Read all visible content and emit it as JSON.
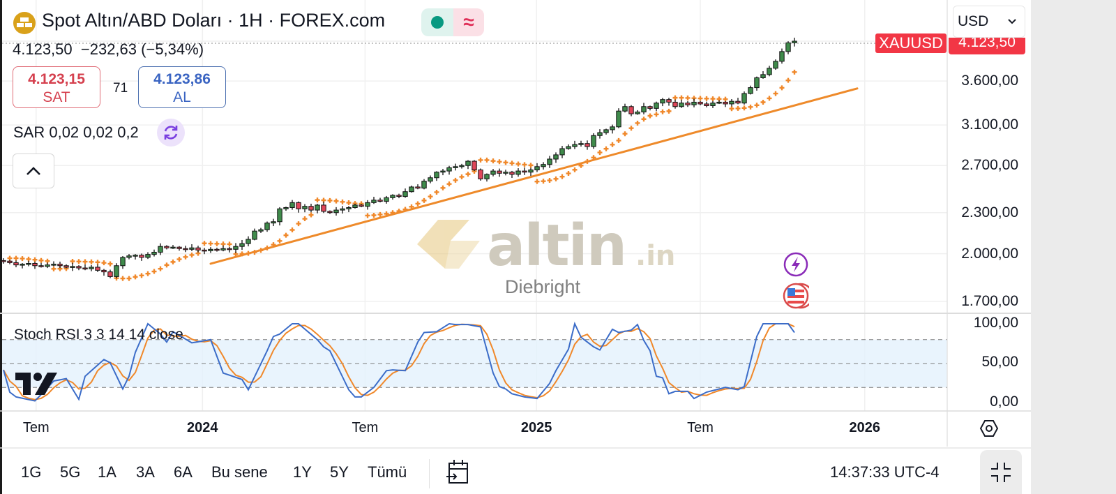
{
  "header": {
    "title": "Spot Altın/ABD Doları · 1H · FOREX.com",
    "symbol_icon": "gold-bars-icon",
    "status_icon": "market-open-dot-icon",
    "status_icon2": "delayed-wave-icon",
    "wave_glyph": "≈",
    "last_price": "4.123,50",
    "change": "−232,63",
    "change_pct": "(−5,34%)"
  },
  "trade": {
    "sell_price": "4.123,15",
    "sell_label": "SAT",
    "spread": "71",
    "buy_price": "4.123,86",
    "buy_label": "AL"
  },
  "indicator_legend": {
    "sar": "SAR 0,02 0,02 0,2",
    "stoch": "Stoch RSI 3 3 14 14 close"
  },
  "price_axis": {
    "currency": "USD",
    "symbol_label": "XAUUSD",
    "last_price_label": "4.123,50",
    "ticks": [
      "3.600,00",
      "3.100,00",
      "2.700,00",
      "2.300,00",
      "2.000,00",
      "1.700,00"
    ],
    "tick_values": [
      3600,
      3100,
      2700,
      2300,
      2000,
      1700
    ],
    "stoch_ticks": [
      "100,00",
      "50,00",
      "0,00"
    ]
  },
  "time_axis": {
    "ticks": [
      {
        "label": "Tem",
        "bar": 5.2,
        "bold": false
      },
      {
        "label": "2024",
        "bar": 31.7,
        "bold": true
      },
      {
        "label": "Tem",
        "bar": 57.6,
        "bold": false
      },
      {
        "label": "2025",
        "bar": 84.9,
        "bold": true
      },
      {
        "label": "Tem",
        "bar": 111.0,
        "bold": false
      },
      {
        "label": "2026",
        "bar": 137.2,
        "bold": true
      }
    ]
  },
  "toolbar": {
    "ranges": [
      "1G",
      "5G",
      "1A",
      "3A",
      "6A",
      "Bu sene",
      "1Y",
      "5Y",
      "Tümü"
    ],
    "time": "14:37:33 UTC-4"
  },
  "watermark": {
    "brand": "altin",
    "brand_suffix": ".in",
    "author": "Diebright"
  },
  "colors": {
    "up": "#3f8b4b",
    "down": "#e0465a",
    "sar": "#f0882a",
    "trendline": "#ee8a2a",
    "stoch_k": "#3b6cc8",
    "stoch_d": "#f0882a",
    "accent_red": "#f23645"
  },
  "chart_data": [
    {
      "type": "candlestick",
      "scale": "log",
      "ylim": [
        1600,
        4300
      ],
      "closes": [
        1950,
        1940,
        1925,
        1930,
        1935,
        1920,
        1915,
        1925,
        1930,
        1920,
        1910,
        1915,
        1905,
        1900,
        1910,
        1890,
        1880,
        1850,
        1920,
        1975,
        1985,
        1990,
        1975,
        1995,
        2010,
        2050,
        2040,
        2045,
        2035,
        2030,
        2040,
        2025,
        2020,
        2030,
        2025,
        2035,
        2030,
        2050,
        2070,
        2100,
        2160,
        2170,
        2220,
        2230,
        2330,
        2340,
        2380,
        2330,
        2350,
        2320,
        2360,
        2310,
        2300,
        2320,
        2330,
        2340,
        2360,
        2350,
        2380,
        2400,
        2390,
        2420,
        2440,
        2430,
        2470,
        2510,
        2500,
        2560,
        2590,
        2640,
        2650,
        2680,
        2690,
        2700,
        2740,
        2660,
        2580,
        2620,
        2650,
        2630,
        2640,
        2620,
        2650,
        2640,
        2660,
        2690,
        2710,
        2760,
        2800,
        2860,
        2880,
        2900,
        2910,
        2880,
        2990,
        3020,
        3050,
        3080,
        3250,
        3300,
        3220,
        3240,
        3300,
        3280,
        3340,
        3380,
        3350,
        3300,
        3340,
        3320,
        3350,
        3330,
        3310,
        3340,
        3350,
        3330,
        3360,
        3340,
        3450,
        3520,
        3640,
        3680,
        3760,
        3850,
        3980,
        4100,
        4123
      ],
      "indicators": {
        "parabolic_sar": {
          "start": 0.02,
          "increment": 0.02,
          "max": 0.2
        },
        "trendline": {
          "from": {
            "bar": 33,
            "price": 1933
          },
          "to": {
            "bar": 136,
            "price": 3510
          }
        }
      }
    },
    {
      "type": "line",
      "name": "Stoch RSI 3 3 14 14 close",
      "ylim": [
        0,
        100
      ],
      "bands": [
        20,
        50,
        80
      ],
      "k_points": [
        [
          0,
          42
        ],
        [
          1,
          14
        ],
        [
          2,
          8
        ],
        [
          5,
          3
        ],
        [
          6,
          11
        ],
        [
          8,
          28
        ],
        [
          10,
          31
        ],
        [
          12,
          5
        ],
        [
          13,
          34
        ],
        [
          16,
          55
        ],
        [
          17,
          51
        ],
        [
          19,
          18
        ],
        [
          20,
          34
        ],
        [
          21,
          64
        ],
        [
          23,
          100
        ],
        [
          25,
          87
        ],
        [
          26,
          77
        ],
        [
          27,
          90
        ],
        [
          30,
          76
        ],
        [
          33,
          80
        ],
        [
          35,
          38
        ],
        [
          38,
          30
        ],
        [
          39,
          17
        ],
        [
          42,
          66
        ],
        [
          43,
          84
        ],
        [
          44,
          87
        ],
        [
          46,
          100
        ],
        [
          47,
          100
        ],
        [
          50,
          80
        ],
        [
          51,
          71
        ],
        [
          52,
          66
        ],
        [
          55,
          17
        ],
        [
          56,
          8
        ],
        [
          57,
          8
        ],
        [
          59,
          20
        ],
        [
          61,
          41
        ],
        [
          62,
          42
        ],
        [
          64,
          41
        ],
        [
          66,
          77
        ],
        [
          67,
          89
        ],
        [
          69,
          90
        ],
        [
          71,
          100
        ],
        [
          72,
          99
        ],
        [
          74,
          99
        ],
        [
          76,
          96
        ],
        [
          78,
          38
        ],
        [
          79,
          21
        ],
        [
          80,
          18
        ],
        [
          81,
          12
        ],
        [
          83,
          8
        ],
        [
          85,
          6
        ],
        [
          87,
          25
        ],
        [
          88,
          41
        ],
        [
          90,
          68
        ],
        [
          91,
          100
        ],
        [
          92,
          83
        ],
        [
          94,
          71
        ],
        [
          95,
          67
        ],
        [
          97,
          93
        ],
        [
          98,
          89
        ],
        [
          100,
          92
        ],
        [
          101,
          99
        ],
        [
          102,
          79
        ],
        [
          103,
          66
        ],
        [
          104,
          34
        ],
        [
          105,
          32
        ],
        [
          106,
          12
        ],
        [
          107,
          15
        ],
        [
          109,
          15
        ],
        [
          110,
          6
        ],
        [
          112,
          14
        ],
        [
          115,
          20
        ],
        [
          117,
          17
        ],
        [
          118,
          21
        ],
        [
          120,
          84
        ],
        [
          121,
          100
        ],
        [
          123,
          100
        ],
        [
          125,
          100
        ],
        [
          126,
          89
        ]
      ]
    }
  ]
}
